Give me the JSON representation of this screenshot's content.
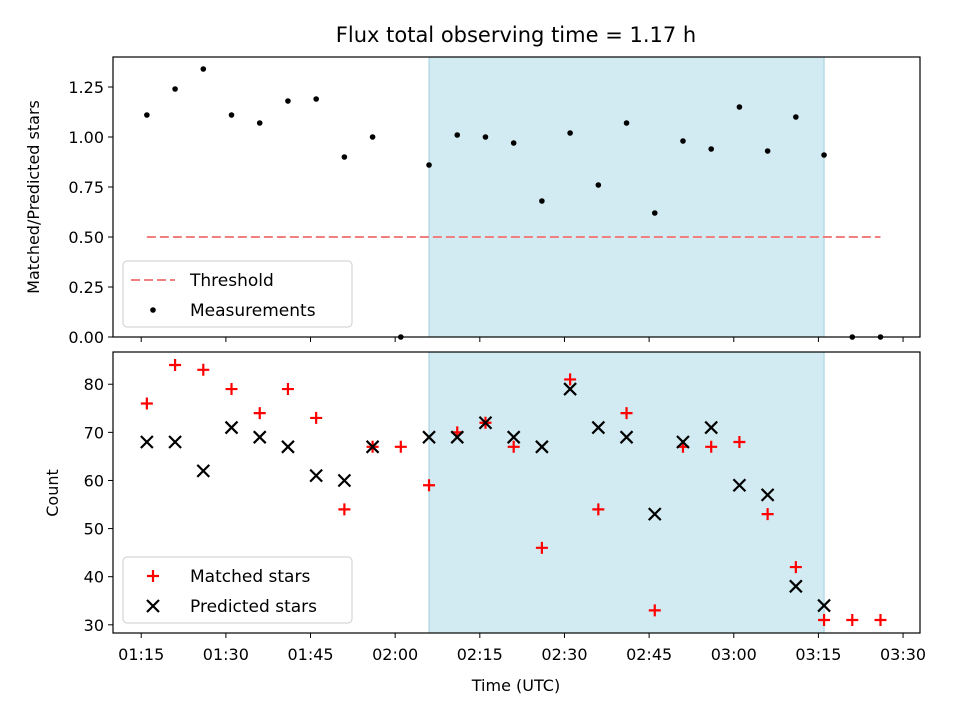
{
  "chart_data": [
    {
      "type": "scatter",
      "title": "Flux total observing time = 1.17 h",
      "ylabel": "Matched/Predicted stars",
      "xlabel": "",
      "ylim": [
        0,
        1.4
      ],
      "yticks": [
        "0.00",
        "0.25",
        "0.50",
        "0.75",
        "1.00",
        "1.25"
      ],
      "xlim": [
        "01:10",
        "03:33"
      ],
      "shaded_region": {
        "start": "02:06",
        "end": "03:16",
        "color": "#add8e6"
      },
      "threshold": {
        "name": "Threshold",
        "value": 0.5,
        "x_start": "01:16",
        "x_end": "03:26",
        "color": "#f08080"
      },
      "series": [
        {
          "name": "Measurements",
          "color": "#000000",
          "marker": "dot",
          "x": [
            "01:16",
            "01:21",
            "01:26",
            "01:31",
            "01:36",
            "01:41",
            "01:46",
            "01:51",
            "01:56",
            "02:01",
            "02:06",
            "02:11",
            "02:16",
            "02:21",
            "02:26",
            "02:31",
            "02:36",
            "02:41",
            "02:46",
            "02:51",
            "02:56",
            "03:01",
            "03:06",
            "03:11",
            "03:16",
            "03:21",
            "03:26"
          ],
          "values": [
            1.11,
            1.24,
            1.34,
            1.11,
            1.07,
            1.18,
            1.19,
            0.9,
            1.0,
            0.0,
            0.86,
            1.01,
            1.0,
            0.97,
            0.68,
            1.02,
            0.76,
            1.07,
            0.62,
            0.98,
            0.94,
            1.15,
            0.93,
            1.1,
            0.91,
            0.0,
            0.0
          ]
        }
      ],
      "legend": {
        "placement": "lower-left",
        "entries": [
          "Threshold",
          "Measurements"
        ]
      }
    },
    {
      "type": "scatter",
      "title": "",
      "ylabel": "Count",
      "xlabel": "Time (UTC)",
      "ylim": [
        28.3,
        86.7
      ],
      "yticks": [
        "30",
        "40",
        "50",
        "60",
        "70",
        "80"
      ],
      "xlim": [
        "01:10",
        "03:33"
      ],
      "xticks": [
        "01:15",
        "01:30",
        "01:45",
        "02:00",
        "02:15",
        "02:30",
        "02:45",
        "03:00",
        "03:15",
        "03:30"
      ],
      "shaded_region": {
        "start": "02:06",
        "end": "03:16",
        "color": "#add8e6"
      },
      "series": [
        {
          "name": "Matched stars",
          "color": "#ff0000",
          "marker": "plus",
          "x": [
            "01:16",
            "01:21",
            "01:26",
            "01:31",
            "01:36",
            "01:41",
            "01:46",
            "01:51",
            "01:56",
            "02:01",
            "02:06",
            "02:11",
            "02:16",
            "02:21",
            "02:26",
            "02:31",
            "02:36",
            "02:41",
            "02:46",
            "02:51",
            "02:56",
            "03:01",
            "03:06",
            "03:11",
            "03:16",
            "03:21",
            "03:26"
          ],
          "values": [
            76,
            84,
            83,
            79,
            74,
            79,
            73,
            54,
            67,
            67,
            59,
            70,
            72,
            67,
            46,
            81,
            54,
            74,
            33,
            67,
            67,
            68,
            53,
            42,
            31,
            31,
            31
          ]
        },
        {
          "name": "Predicted stars",
          "color": "#000000",
          "marker": "x",
          "x": [
            "01:16",
            "01:21",
            "01:26",
            "01:31",
            "01:36",
            "01:41",
            "01:46",
            "01:51",
            "01:56",
            "02:06",
            "02:11",
            "02:16",
            "02:21",
            "02:26",
            "02:31",
            "02:36",
            "02:41",
            "02:46",
            "02:51",
            "02:56",
            "03:01",
            "03:06",
            "03:11",
            "03:16"
          ],
          "values": [
            68,
            68,
            62,
            71,
            69,
            67,
            61,
            60,
            67,
            69,
            69,
            72,
            69,
            67,
            79,
            71,
            69,
            53,
            68,
            71,
            59,
            57,
            38,
            34
          ]
        }
      ],
      "legend": {
        "placement": "lower-left",
        "entries": [
          "Matched stars",
          "Predicted stars"
        ]
      }
    }
  ]
}
